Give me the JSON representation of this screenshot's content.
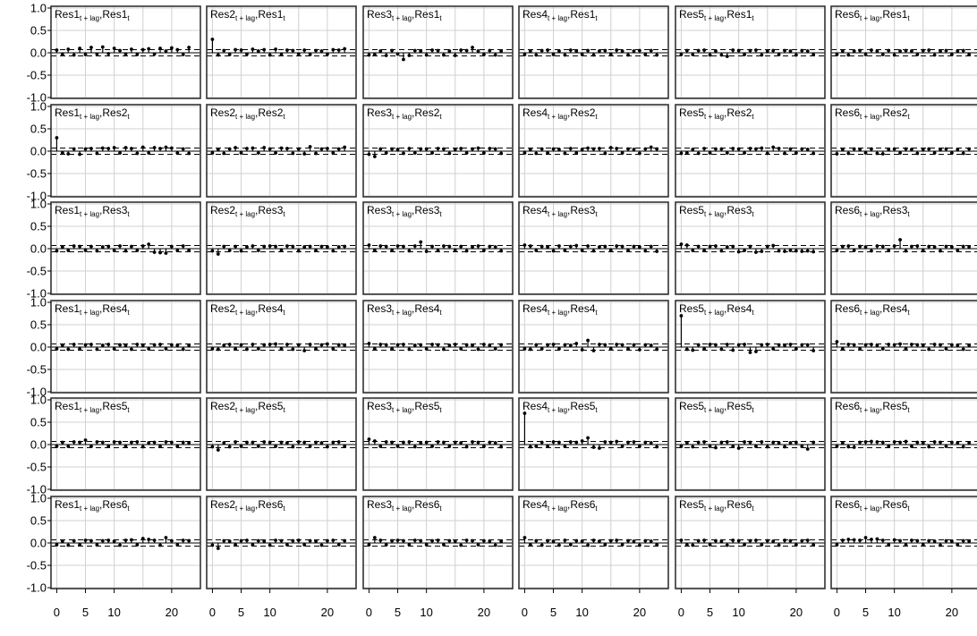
{
  "chart_data": {
    "type": "cross-correlation-matrix",
    "series_names": [
      "Res1",
      "Res2",
      "Res3",
      "Res4",
      "Res5",
      "Res6"
    ],
    "label_suffix_lag": "t + lag",
    "label_suffix_t": "t",
    "ylim": [
      -1.0,
      1.0
    ],
    "yticks": [
      "1.0",
      "0.5",
      "0.0",
      "-0.5",
      "-1.0"
    ],
    "ytick_values": [
      1.0,
      0.5,
      0.0,
      -0.5,
      -1.0
    ],
    "xlim": [
      -1,
      25
    ],
    "xticks": [
      0,
      5,
      10,
      20
    ],
    "xgrid": [
      0,
      5,
      10,
      15,
      20,
      25
    ],
    "conf_bound": 0.07,
    "grid": true,
    "panels": [
      {
        "row": 0,
        "col": 0,
        "lag_series": "Res1",
        "t_series": "Res1",
        "values": [
          0.06,
          -0.04,
          0.08,
          -0.05,
          0.1,
          -0.04,
          0.12,
          -0.03,
          0.13,
          -0.02,
          0.1,
          0.05,
          -0.03,
          0.08,
          -0.04,
          0.07,
          0.09,
          -0.03,
          0.1,
          0.04,
          0.11,
          0.07,
          -0.04,
          0.12
        ]
      },
      {
        "row": 0,
        "col": 1,
        "lag_series": "Res2",
        "t_series": "Res1",
        "values": [
          0.3,
          -0.05,
          0.05,
          -0.04,
          0.07,
          0.06,
          -0.03,
          0.08,
          0.04,
          0.07,
          -0.05,
          0.08,
          -0.04,
          0.06,
          0.05,
          -0.03,
          0.06,
          -0.04,
          0.05,
          0.04,
          -0.03,
          0.07,
          0.06,
          0.09
        ]
      },
      {
        "row": 0,
        "col": 2,
        "lag_series": "Res3",
        "t_series": "Res1",
        "values": [
          -0.05,
          -0.04,
          0.04,
          -0.06,
          0.05,
          -0.03,
          -0.15,
          -0.06,
          0.05,
          0.04,
          -0.05,
          0.06,
          0.05,
          -0.05,
          0.04,
          -0.06,
          0.06,
          0.05,
          0.12,
          0.04,
          -0.04,
          0.05,
          -0.05,
          0.04
        ]
      },
      {
        "row": 0,
        "col": 3,
        "lag_series": "Res4",
        "t_series": "Res1",
        "values": [
          -0.04,
          0.04,
          -0.05,
          0.05,
          0.06,
          -0.04,
          0.04,
          -0.05,
          0.06,
          0.04,
          -0.04,
          0.05,
          -0.05,
          0.04,
          0.05,
          -0.04,
          0.06,
          0.04,
          -0.05,
          0.04,
          0.05,
          -0.04,
          0.05,
          -0.05
        ]
      },
      {
        "row": 0,
        "col": 4,
        "lag_series": "Res5",
        "t_series": "Res1",
        "values": [
          -0.04,
          0.05,
          -0.04,
          0.05,
          0.06,
          -0.05,
          0.04,
          -0.05,
          -0.08,
          0.06,
          0.05,
          -0.04,
          0.05,
          0.06,
          -0.05,
          0.04,
          0.05,
          -0.04,
          0.05,
          0.04,
          -0.05,
          0.05,
          0.04,
          -0.04
        ]
      },
      {
        "row": 0,
        "col": 5,
        "lag_series": "Res6",
        "t_series": "Res1",
        "values": [
          -0.04,
          0.04,
          -0.05,
          0.04,
          0.05,
          -0.04,
          0.06,
          0.04,
          -0.04,
          0.05,
          -0.05,
          0.04,
          0.05,
          0.04,
          -0.04,
          0.05,
          0.06,
          -0.05,
          0.04,
          0.05,
          -0.04,
          0.04,
          0.05,
          -0.04
        ]
      },
      {
        "row": 1,
        "col": 0,
        "lag_series": "Res1",
        "t_series": "Res2",
        "values": [
          0.3,
          -0.04,
          -0.06,
          0.05,
          -0.07,
          0.05,
          0.06,
          -0.05,
          0.07,
          0.06,
          0.08,
          -0.04,
          0.08,
          0.06,
          -0.05,
          0.09,
          -0.04,
          0.08,
          0.06,
          0.09,
          0.07,
          -0.04,
          0.05,
          -0.05
        ]
      },
      {
        "row": 1,
        "col": 1,
        "lag_series": "Res2",
        "t_series": "Res2",
        "values": [
          -0.04,
          0.04,
          -0.05,
          0.05,
          0.08,
          -0.04,
          0.06,
          0.07,
          -0.04,
          0.08,
          0.05,
          -0.04,
          0.07,
          0.06,
          -0.05,
          0.05,
          -0.06,
          0.1,
          -0.05,
          0.05,
          0.06,
          -0.04,
          0.05,
          0.09
        ]
      },
      {
        "row": 1,
        "col": 2,
        "lag_series": "Res3",
        "t_series": "Res2",
        "values": [
          -0.07,
          -0.12,
          0.05,
          -0.04,
          0.05,
          0.04,
          -0.05,
          0.06,
          -0.04,
          0.05,
          0.05,
          -0.04,
          0.06,
          0.05,
          -0.05,
          0.04,
          0.06,
          -0.04,
          0.05,
          0.07,
          -0.04,
          0.06,
          0.05,
          -0.05
        ]
      },
      {
        "row": 1,
        "col": 3,
        "lag_series": "Res4",
        "t_series": "Res2",
        "values": [
          -0.04,
          0.04,
          -0.05,
          0.05,
          -0.04,
          0.05,
          0.04,
          -0.05,
          0.06,
          -0.04,
          0.04,
          0.07,
          0.05,
          0.06,
          -0.05,
          0.08,
          0.06,
          -0.04,
          0.05,
          0.04,
          -0.05,
          0.05,
          0.09,
          0.05
        ]
      },
      {
        "row": 1,
        "col": 4,
        "lag_series": "Res5",
        "t_series": "Res2",
        "values": [
          -0.05,
          -0.04,
          0.04,
          -0.05,
          0.06,
          -0.04,
          0.05,
          0.05,
          -0.04,
          0.06,
          0.05,
          -0.04,
          0.06,
          0.05,
          0.07,
          -0.05,
          0.09,
          0.06,
          -0.05,
          0.05,
          -0.04,
          0.05,
          0.04,
          -0.05
        ]
      },
      {
        "row": 1,
        "col": 5,
        "lag_series": "Res6",
        "t_series": "Res2",
        "values": [
          -0.06,
          0.04,
          -0.05,
          0.05,
          0.04,
          -0.04,
          0.05,
          -0.05,
          -0.06,
          0.04,
          0.05,
          -0.04,
          0.05,
          0.04,
          -0.05,
          0.04,
          0.05,
          -0.04,
          0.04,
          0.05,
          -0.04,
          0.04,
          -0.05,
          0.05
        ]
      },
      {
        "row": 2,
        "col": 0,
        "lag_series": "Res1",
        "t_series": "Res3",
        "values": [
          -0.05,
          0.04,
          -0.04,
          0.06,
          0.05,
          -0.04,
          0.05,
          -0.05,
          0.04,
          0.05,
          -0.04,
          0.06,
          -0.05,
          0.05,
          -0.04,
          0.06,
          0.1,
          -0.08,
          -0.09,
          -0.1,
          0.05,
          -0.04,
          0.06,
          -0.04
        ]
      },
      {
        "row": 2,
        "col": 1,
        "lag_series": "Res2",
        "t_series": "Res3",
        "values": [
          -0.05,
          -0.12,
          0.05,
          -0.04,
          0.05,
          -0.05,
          0.04,
          0.06,
          -0.04,
          0.05,
          0.06,
          0.05,
          -0.04,
          0.06,
          0.05,
          -0.05,
          0.04,
          0.05,
          -0.04,
          0.05,
          0.04,
          -0.05,
          0.04,
          0.05
        ]
      },
      {
        "row": 2,
        "col": 2,
        "lag_series": "Res3",
        "t_series": "Res3",
        "values": [
          0.08,
          -0.04,
          0.06,
          0.05,
          -0.04,
          0.06,
          0.05,
          -0.05,
          0.06,
          0.15,
          -0.06,
          0.05,
          -0.04,
          0.06,
          0.05,
          -0.04,
          0.05,
          -0.05,
          0.04,
          0.06,
          -0.04,
          0.05,
          0.04,
          -0.05
        ]
      },
      {
        "row": 2,
        "col": 3,
        "lag_series": "Res4",
        "t_series": "Res3",
        "values": [
          0.08,
          0.06,
          -0.04,
          0.05,
          0.04,
          -0.05,
          0.06,
          -0.04,
          0.05,
          0.07,
          -0.04,
          0.06,
          -0.05,
          0.04,
          0.05,
          -0.04,
          0.06,
          0.05,
          -0.04,
          0.05,
          0.04,
          -0.05,
          0.05,
          -0.06
        ]
      },
      {
        "row": 2,
        "col": 4,
        "lag_series": "Res5",
        "t_series": "Res3",
        "values": [
          0.1,
          0.08,
          -0.04,
          0.05,
          -0.04,
          0.05,
          0.06,
          -0.05,
          0.04,
          0.05,
          -0.07,
          -0.04,
          0.05,
          -0.08,
          -0.06,
          0.05,
          0.07,
          -0.05,
          -0.06,
          -0.04,
          -0.05,
          -0.06,
          -0.05,
          -0.07
        ]
      },
      {
        "row": 2,
        "col": 5,
        "lag_series": "Res6",
        "t_series": "Res3",
        "values": [
          -0.04,
          0.05,
          0.06,
          -0.04,
          0.05,
          0.04,
          -0.05,
          0.06,
          0.05,
          -0.04,
          0.06,
          0.2,
          -0.05,
          0.05,
          0.06,
          -0.04,
          0.05,
          0.04,
          -0.05,
          0.05,
          0.04,
          -0.04,
          0.05,
          0.04
        ]
      },
      {
        "row": 3,
        "col": 0,
        "lag_series": "Res1",
        "t_series": "Res4",
        "values": [
          -0.04,
          0.04,
          -0.05,
          0.06,
          -0.04,
          0.05,
          0.06,
          -0.05,
          0.04,
          0.06,
          -0.04,
          0.05,
          0.04,
          -0.05,
          0.06,
          0.04,
          -0.04,
          0.05,
          0.06,
          -0.04,
          0.05,
          0.04,
          -0.05,
          0.04
        ]
      },
      {
        "row": 3,
        "col": 1,
        "lag_series": "Res2",
        "t_series": "Res4",
        "values": [
          -0.04,
          -0.05,
          0.04,
          0.06,
          -0.04,
          0.05,
          -0.05,
          0.06,
          -0.04,
          0.05,
          0.06,
          0.07,
          -0.04,
          0.06,
          -0.05,
          0.05,
          -0.08,
          0.06,
          -0.04,
          0.05,
          0.07,
          -0.04,
          0.05,
          0.04
        ]
      },
      {
        "row": 3,
        "col": 2,
        "lag_series": "Res3",
        "t_series": "Res4",
        "values": [
          0.08,
          -0.04,
          0.06,
          0.05,
          -0.04,
          0.05,
          0.06,
          -0.05,
          0.04,
          0.05,
          -0.04,
          0.06,
          0.05,
          -0.05,
          0.04,
          0.06,
          -0.04,
          0.05,
          0.04,
          -0.05,
          0.06,
          0.04,
          -0.04,
          0.05
        ]
      },
      {
        "row": 3,
        "col": 3,
        "lag_series": "Res4",
        "t_series": "Res4",
        "values": [
          -0.04,
          -0.05,
          0.05,
          -0.04,
          0.05,
          0.06,
          -0.04,
          0.05,
          0.04,
          0.08,
          -0.06,
          0.15,
          -0.08,
          0.06,
          0.05,
          -0.04,
          0.06,
          0.05,
          -0.04,
          0.05,
          -0.06,
          0.05,
          0.04,
          -0.05
        ]
      },
      {
        "row": 3,
        "col": 4,
        "lag_series": "Res5",
        "t_series": "Res4",
        "values": [
          0.7,
          -0.05,
          -0.07,
          0.05,
          -0.04,
          0.06,
          0.05,
          -0.05,
          0.06,
          -0.07,
          0.05,
          0.06,
          -0.12,
          -0.1,
          0.05,
          0.06,
          -0.04,
          0.05,
          0.04,
          0.06,
          -0.04,
          0.05,
          0.05,
          -0.08
        ]
      },
      {
        "row": 3,
        "col": 5,
        "lag_series": "Res6",
        "t_series": "Res4",
        "values": [
          0.12,
          -0.04,
          0.06,
          0.05,
          -0.04,
          0.05,
          0.06,
          0.04,
          -0.04,
          0.06,
          0.05,
          0.07,
          -0.04,
          0.06,
          0.05,
          0.04,
          -0.05,
          0.06,
          0.05,
          -0.04,
          0.05,
          0.04,
          -0.05,
          0.04
        ]
      },
      {
        "row": 4,
        "col": 0,
        "lag_series": "Res1",
        "t_series": "Res5",
        "values": [
          -0.04,
          0.05,
          -0.04,
          0.06,
          0.05,
          0.1,
          -0.04,
          0.06,
          0.05,
          -0.04,
          0.06,
          0.05,
          -0.04,
          0.05,
          0.06,
          -0.05,
          0.04,
          0.05,
          -0.04,
          0.06,
          0.05,
          -0.04,
          0.05,
          0.04
        ]
      },
      {
        "row": 4,
        "col": 1,
        "lag_series": "Res2",
        "t_series": "Res5",
        "values": [
          -0.05,
          -0.12,
          0.04,
          -0.05,
          0.06,
          -0.04,
          0.05,
          0.05,
          -0.04,
          0.06,
          0.05,
          -0.04,
          0.05,
          0.04,
          -0.05,
          0.06,
          0.05,
          -0.04,
          0.05,
          0.04,
          -0.05,
          0.05,
          0.06,
          -0.04
        ]
      },
      {
        "row": 4,
        "col": 2,
        "lag_series": "Res3",
        "t_series": "Res5",
        "values": [
          0.12,
          0.08,
          -0.04,
          0.06,
          0.05,
          -0.04,
          0.05,
          0.06,
          -0.05,
          0.04,
          0.05,
          -0.04,
          0.06,
          0.05,
          -0.04,
          0.05,
          0.04,
          -0.05,
          0.06,
          0.05,
          -0.04,
          0.05,
          0.04,
          -0.05
        ]
      },
      {
        "row": 4,
        "col": 3,
        "lag_series": "Res4",
        "t_series": "Res5",
        "values": [
          0.7,
          -0.05,
          -0.04,
          0.05,
          -0.04,
          0.06,
          0.05,
          -0.04,
          0.06,
          0.05,
          0.08,
          0.15,
          -0.06,
          -0.08,
          0.06,
          0.05,
          0.07,
          -0.04,
          0.05,
          0.06,
          -0.04,
          0.05,
          0.04,
          -0.05
        ]
      },
      {
        "row": 4,
        "col": 4,
        "lag_series": "Res5",
        "t_series": "Res5",
        "values": [
          -0.04,
          0.04,
          -0.05,
          0.05,
          0.06,
          -0.04,
          -0.07,
          0.05,
          0.06,
          -0.04,
          -0.08,
          0.06,
          0.05,
          -0.04,
          0.06,
          -0.05,
          0.05,
          0.04,
          -0.05,
          0.04,
          0.05,
          -0.04,
          -0.1,
          0.05
        ]
      },
      {
        "row": 4,
        "col": 5,
        "lag_series": "Res6",
        "t_series": "Res5",
        "values": [
          -0.04,
          0.04,
          -0.05,
          -0.06,
          0.05,
          0.06,
          0.07,
          0.06,
          0.05,
          -0.04,
          0.06,
          0.05,
          0.07,
          -0.04,
          0.05,
          0.04,
          -0.05,
          0.06,
          0.05,
          -0.04,
          0.05,
          0.04,
          -0.05,
          0.04
        ]
      },
      {
        "row": 5,
        "col": 0,
        "lag_series": "Res1",
        "t_series": "Res6",
        "values": [
          -0.04,
          0.04,
          -0.05,
          0.05,
          -0.04,
          0.06,
          0.05,
          -0.04,
          0.05,
          0.06,
          0.04,
          -0.05,
          0.06,
          0.07,
          -0.04,
          0.1,
          0.08,
          0.06,
          -0.05,
          0.12,
          0.05,
          -0.04,
          0.06,
          0.05
        ]
      },
      {
        "row": 5,
        "col": 1,
        "lag_series": "Res2",
        "t_series": "Res6",
        "values": [
          -0.05,
          -0.12,
          0.05,
          0.04,
          -0.04,
          0.05,
          0.06,
          -0.04,
          0.05,
          0.04,
          -0.05,
          0.06,
          0.05,
          -0.04,
          0.05,
          0.06,
          -0.04,
          0.05,
          0.04,
          -0.05,
          0.05,
          0.06,
          -0.04,
          0.05
        ]
      },
      {
        "row": 5,
        "col": 2,
        "lag_series": "Res3",
        "t_series": "Res6",
        "values": [
          -0.04,
          0.12,
          0.06,
          -0.04,
          0.05,
          0.06,
          0.05,
          -0.04,
          0.06,
          0.05,
          -0.04,
          0.05,
          0.06,
          -0.04,
          0.05,
          0.04,
          -0.05,
          0.06,
          0.05,
          -0.04,
          0.05,
          0.04,
          -0.05,
          0.04
        ]
      },
      {
        "row": 5,
        "col": 3,
        "lag_series": "Res4",
        "t_series": "Res6",
        "values": [
          0.12,
          -0.04,
          0.05,
          -0.05,
          0.05,
          0.04,
          -0.05,
          0.06,
          -0.04,
          0.05,
          0.04,
          -0.05,
          0.06,
          0.04,
          -0.04,
          0.05,
          0.06,
          -0.04,
          0.05,
          0.04,
          -0.05,
          0.05,
          0.04,
          -0.04
        ]
      },
      {
        "row": 5,
        "col": 4,
        "lag_series": "Res5",
        "t_series": "Res6",
        "values": [
          0.06,
          -0.04,
          -0.05,
          0.05,
          0.06,
          -0.04,
          0.05,
          0.04,
          -0.05,
          0.06,
          0.05,
          -0.04,
          0.05,
          0.06,
          -0.04,
          0.05,
          0.04,
          -0.05,
          0.06,
          0.05,
          -0.04,
          0.05,
          0.06,
          -0.04
        ]
      },
      {
        "row": 5,
        "col": 5,
        "lag_series": "Res6",
        "t_series": "Res6",
        "values": [
          -0.04,
          0.06,
          0.08,
          0.07,
          0.06,
          0.12,
          0.08,
          0.09,
          0.06,
          -0.04,
          0.07,
          0.05,
          -0.04,
          0.06,
          0.05,
          -0.04,
          0.05,
          0.04,
          -0.05,
          0.05,
          0.04,
          -0.04,
          0.05,
          0.04
        ]
      }
    ]
  }
}
